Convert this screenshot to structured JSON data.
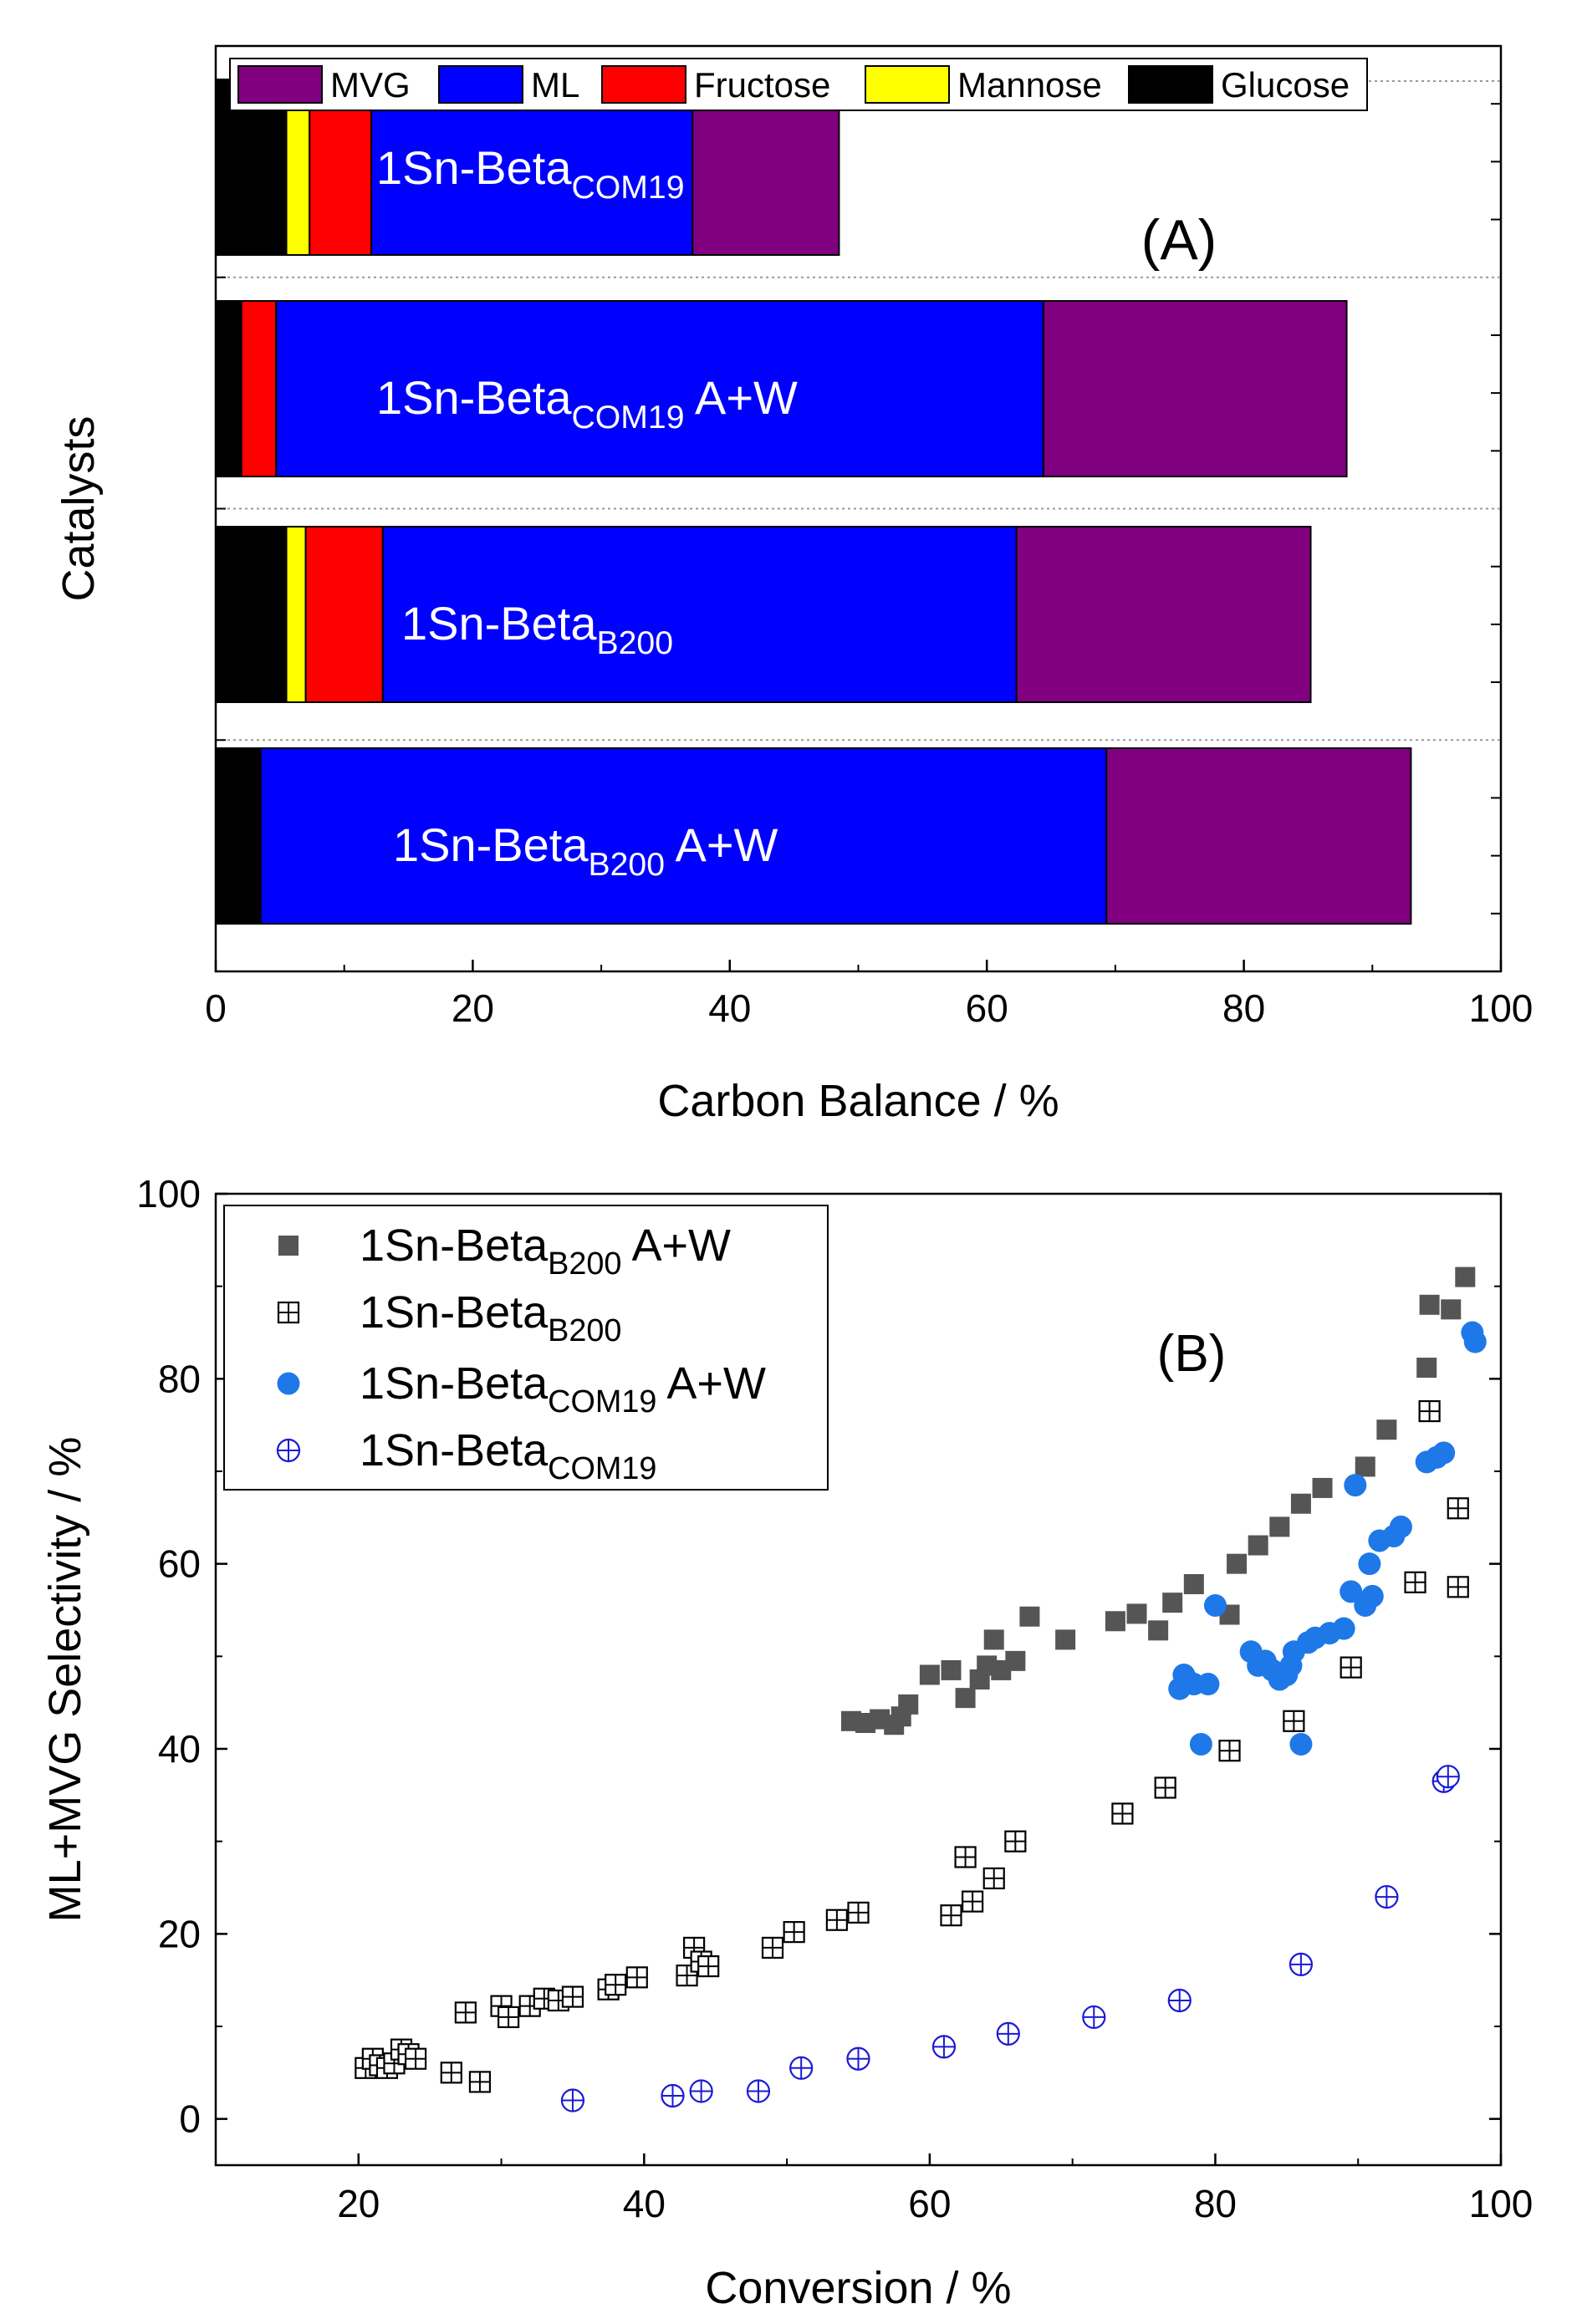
{
  "chart_data": [
    {
      "type": "bar",
      "orientation": "horizontal",
      "stacked": true,
      "panel_label": "(A)",
      "xlabel": "Carbon Balance / %",
      "ylabel": "Catalysts",
      "xlim": [
        0,
        100
      ],
      "xticks": [
        0,
        20,
        40,
        60,
        80,
        100
      ],
      "legend_position": "top",
      "legend": [
        "MVG",
        "ML",
        "Fructose",
        "Mannose",
        "Glucose"
      ],
      "series_colors": {
        "Glucose": "#000000",
        "Mannose": "#ffff00",
        "Fructose": "#ff0000",
        "ML": "#0000ff",
        "MVG": "#800080"
      },
      "categories": [
        {
          "name": "1Sn-Beta",
          "sub": "COM19",
          "suffix": ""
        },
        {
          "name": "1Sn-Beta",
          "sub": "COM19",
          "suffix": " A+W"
        },
        {
          "name": "1Sn-Beta",
          "sub": "B200",
          "suffix": ""
        },
        {
          "name": "1Sn-Beta",
          "sub": "B200",
          "suffix": " A+W"
        }
      ],
      "series": [
        {
          "name": "Glucose",
          "values": [
            5.5,
            2.0,
            5.5,
            3.5
          ]
        },
        {
          "name": "Mannose",
          "values": [
            1.8,
            0,
            1.5,
            0
          ]
        },
        {
          "name": "Fructose",
          "values": [
            4.8,
            2.7,
            6.0,
            0
          ]
        },
        {
          "name": "ML",
          "values": [
            25.0,
            59.7,
            49.3,
            65.8
          ]
        },
        {
          "name": "MVG",
          "values": [
            11.4,
            23.6,
            22.9,
            23.7
          ]
        }
      ]
    },
    {
      "type": "scatter",
      "panel_label": "(B)",
      "xlabel": "Conversion / %",
      "ylabel": "ML+MVG Selectivity / %",
      "xlim": [
        10,
        100
      ],
      "ylim": [
        -5,
        100
      ],
      "xticks": [
        20,
        40,
        60,
        80,
        100
      ],
      "yticks": [
        0,
        20,
        40,
        60,
        80,
        100
      ],
      "legend_position": "top-left",
      "series": [
        {
          "name": "1Sn-Beta",
          "sub": "B200",
          "suffix": " A+W",
          "marker": "filled-square",
          "color": "#555555",
          "points": [
            [
              54.5,
              43
            ],
            [
              55.5,
              42.8
            ],
            [
              56.5,
              43.2
            ],
            [
              57.5,
              42.6
            ],
            [
              58,
              43.5
            ],
            [
              58.5,
              44.8
            ],
            [
              60,
              48
            ],
            [
              61.5,
              48.5
            ],
            [
              62.5,
              45.5
            ],
            [
              63.5,
              47.5
            ],
            [
              64,
              49
            ],
            [
              64.5,
              51.8
            ],
            [
              65,
              48.5
            ],
            [
              66,
              49.5
            ],
            [
              67,
              54.3
            ],
            [
              69.5,
              51.8
            ],
            [
              73,
              53.8
            ],
            [
              74.5,
              54.6
            ],
            [
              76,
              52.8
            ],
            [
              77,
              55.8
            ],
            [
              78.5,
              57.8
            ],
            [
              81,
              54.5
            ],
            [
              81.5,
              60
            ],
            [
              83,
              62
            ],
            [
              84.5,
              64
            ],
            [
              86,
              66.5
            ],
            [
              87.5,
              68.2
            ],
            [
              90.5,
              70.5
            ],
            [
              92,
              74.5
            ],
            [
              94.8,
              81.2
            ],
            [
              95,
              88
            ],
            [
              96.5,
              87.5
            ],
            [
              97.5,
              91
            ]
          ]
        },
        {
          "name": "1Sn-Beta",
          "sub": "B200",
          "suffix": "",
          "marker": "open-boxplus",
          "color": "#000000",
          "points": [
            [
              20.5,
              5.5
            ],
            [
              21,
              6.5
            ],
            [
              21.5,
              5.8
            ],
            [
              22,
              5.5
            ],
            [
              22.5,
              6
            ],
            [
              23,
              7.5
            ],
            [
              23.5,
              7
            ],
            [
              24,
              6.5
            ],
            [
              26.5,
              5
            ],
            [
              27.5,
              11.5
            ],
            [
              28.5,
              4
            ],
            [
              30,
              12.2
            ],
            [
              30.5,
              11
            ],
            [
              32,
              12.2
            ],
            [
              33,
              13
            ],
            [
              34,
              12.8
            ],
            [
              35,
              13.2
            ],
            [
              37.5,
              14
            ],
            [
              38,
              14.5
            ],
            [
              39.5,
              15.3
            ],
            [
              43,
              15.5
            ],
            [
              43.5,
              18.5
            ],
            [
              44,
              17
            ],
            [
              44.5,
              16.5
            ],
            [
              49,
              18.5
            ],
            [
              50.5,
              20.2
            ],
            [
              53.5,
              21.5
            ],
            [
              55,
              22.3
            ],
            [
              61.5,
              22
            ],
            [
              62.5,
              28.3
            ],
            [
              63,
              23.5
            ],
            [
              64.5,
              26
            ],
            [
              66,
              30
            ],
            [
              73.5,
              33
            ],
            [
              76.5,
              35.8
            ],
            [
              81,
              39.8
            ],
            [
              85.5,
              43
            ],
            [
              89.5,
              48.8
            ],
            [
              94,
              58
            ],
            [
              95,
              76.5
            ],
            [
              97,
              66
            ],
            [
              97,
              57.5
            ]
          ]
        },
        {
          "name": "1Sn-Beta",
          "sub": "COM19",
          "suffix": " A+W",
          "marker": "filled-circle",
          "color": "#1f78e8",
          "points": [
            [
              77.5,
              46.5
            ],
            [
              77.8,
              48
            ],
            [
              78,
              47.5
            ],
            [
              78.5,
              47
            ],
            [
              79,
              40.5
            ],
            [
              79.5,
              47
            ],
            [
              80,
              55.5
            ],
            [
              82.5,
              50.5
            ],
            [
              83,
              49
            ],
            [
              83.5,
              49.5
            ],
            [
              84,
              48.5
            ],
            [
              84.5,
              47.5
            ],
            [
              85,
              48
            ],
            [
              85.3,
              49
            ],
            [
              85.5,
              50.5
            ],
            [
              86,
              40.5
            ],
            [
              86.5,
              51.5
            ],
            [
              87,
              52
            ],
            [
              88,
              52.5
            ],
            [
              89,
              53
            ],
            [
              89.5,
              57
            ],
            [
              89.8,
              68.5
            ],
            [
              90.5,
              55.5
            ],
            [
              90.8,
              60
            ],
            [
              91,
              56.5
            ],
            [
              91.5,
              62.5
            ],
            [
              92.5,
              63
            ],
            [
              93,
              64
            ],
            [
              94.8,
              71
            ],
            [
              95.5,
              71.5
            ],
            [
              96,
              72
            ],
            [
              98,
              85
            ],
            [
              98.2,
              84
            ]
          ]
        },
        {
          "name": "1Sn-Beta",
          "sub": "COM19",
          "suffix": "",
          "marker": "open-circleplus",
          "color": "#1a1ad8",
          "points": [
            [
              35,
              2
            ],
            [
              42,
              2.5
            ],
            [
              44,
              3
            ],
            [
              48,
              3
            ],
            [
              51,
              5.5
            ],
            [
              55,
              6.5
            ],
            [
              61,
              7.8
            ],
            [
              65.5,
              9.2
            ],
            [
              71.5,
              11
            ],
            [
              77.5,
              12.8
            ],
            [
              86,
              16.7
            ],
            [
              92,
              24
            ],
            [
              96,
              36.5
            ],
            [
              96.3,
              37
            ]
          ]
        }
      ]
    }
  ]
}
